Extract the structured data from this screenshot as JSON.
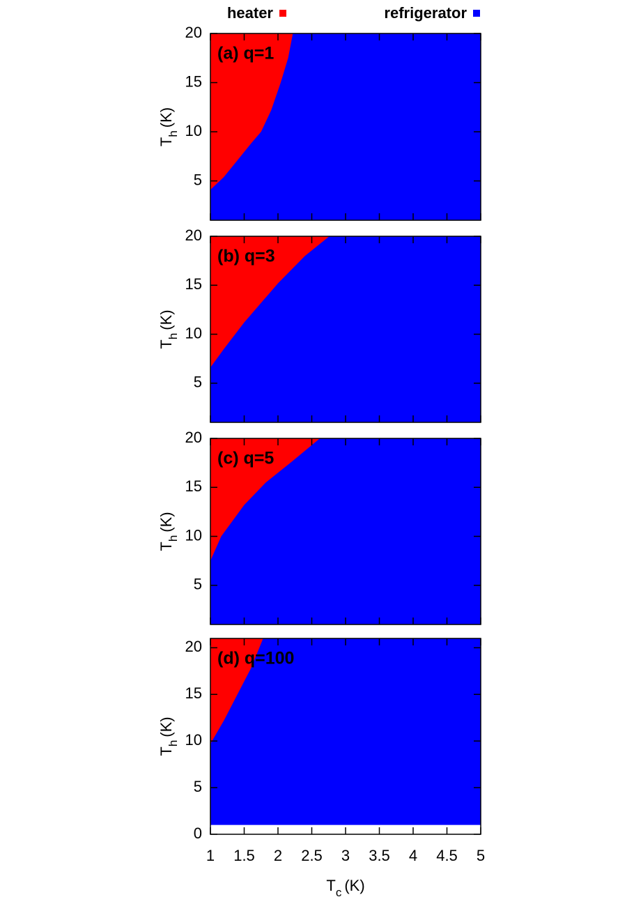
{
  "legend": [
    {
      "name": "heater",
      "color": "#ff0000"
    },
    {
      "name": "refrigerator",
      "color": "#0000ff"
    }
  ],
  "chart_data": [
    {
      "type": "region",
      "label": "(a) q=1",
      "ylabel": {
        "main": "T",
        "sub": "h",
        "unit": "(K)"
      },
      "xlim": [
        1,
        5
      ],
      "ylim": [
        1,
        20
      ],
      "xticks": [
        1,
        1.5,
        2,
        2.5,
        3,
        3.5,
        4,
        4.5,
        5
      ],
      "yticks": [
        5,
        10,
        15,
        20
      ],
      "domain": {
        "x": [
          1,
          5
        ],
        "y": [
          1,
          20
        ]
      },
      "boundary": {
        "x": [
          1,
          1.2,
          1.4,
          1.6,
          1.75,
          1.9,
          2.04,
          2.15,
          2.22
        ],
        "y": [
          4.1,
          5.4,
          7.1,
          8.8,
          10,
          12.2,
          15,
          17.5,
          20
        ]
      }
    },
    {
      "type": "region",
      "label": "(b) q=3",
      "ylabel": {
        "main": "T",
        "sub": "h",
        "unit": "(K)"
      },
      "xlim": [
        1,
        5
      ],
      "ylim": [
        1,
        20
      ],
      "xticks": [
        1,
        1.5,
        2,
        2.5,
        3,
        3.5,
        4,
        4.5,
        5
      ],
      "yticks": [
        5,
        10,
        15,
        20
      ],
      "domain": {
        "x": [
          1,
          5
        ],
        "y": [
          1,
          20
        ]
      },
      "boundary": {
        "x": [
          1,
          1.2,
          1.5,
          2,
          2.4,
          2.76
        ],
        "y": [
          6.6,
          8.5,
          11.2,
          15.2,
          18,
          20
        ]
      }
    },
    {
      "type": "region",
      "label": "(c) q=5",
      "ylabel": {
        "main": "T",
        "sub": "h",
        "unit": "(K)"
      },
      "xlim": [
        1,
        5
      ],
      "ylim": [
        1,
        20
      ],
      "xticks": [
        1,
        1.5,
        2,
        2.5,
        3,
        3.5,
        4,
        4.5,
        5
      ],
      "yticks": [
        5,
        10,
        15,
        20
      ],
      "domain": {
        "x": [
          1,
          5
        ],
        "y": [
          1,
          20
        ]
      },
      "boundary": {
        "x": [
          1,
          1.16,
          1.5,
          1.82,
          2.2,
          2.62
        ],
        "y": [
          7.5,
          10,
          13.2,
          15.5,
          17.6,
          20
        ]
      }
    },
    {
      "type": "region",
      "label": "(d) q=100",
      "ylabel": {
        "main": "T",
        "sub": "h",
        "unit": "(K)"
      },
      "xlabel": {
        "main": "T",
        "sub": "c",
        "unit": "(K)"
      },
      "xlim": [
        1,
        5
      ],
      "ylim": [
        0,
        21
      ],
      "xticks": [
        1,
        1.5,
        2,
        2.5,
        3,
        3.5,
        4,
        4.5,
        5
      ],
      "yticks": [
        0,
        5,
        10,
        15,
        20
      ],
      "domain": {
        "x": [
          1,
          5
        ],
        "y": [
          1,
          21
        ]
      },
      "boundary": {
        "x": [
          1,
          1.2,
          1.4,
          1.6,
          1.78
        ],
        "y": [
          9.7,
          12.2,
          15,
          17.8,
          21
        ]
      }
    }
  ]
}
